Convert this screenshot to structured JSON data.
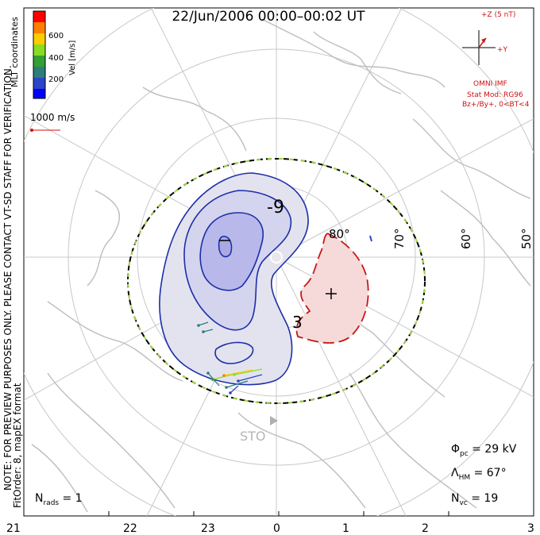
{
  "title": "22/Jun/2006 00:00–00:02 UT",
  "imf": {
    "axis_z": "+Z (5 nT)",
    "axis_y": "+Y",
    "source": "OMNI IMF",
    "stat_mod": "Stat Mod: RG96",
    "condition": "Bz+/By+, 0<BT<4"
  },
  "colorbar": {
    "title": "Vel [m/s]",
    "ticks": [
      "600",
      "400",
      "200"
    ],
    "colors": [
      "#ff0000",
      "#ff7f00",
      "#ffcc00",
      "#88dd22",
      "#33a033",
      "#2e7d7d",
      "#2a45c8",
      "#0000ff"
    ]
  },
  "coord_label": "MLT coordinates",
  "vector_scale": "1000 m/s",
  "side_note_1": "NOTE: FOR PREVIEW PURPOSES ONLY. PLEASE CONTACT VT-SD STAFF FOR VERIFICATION.",
  "side_note_2": "FitOrder: 8, mapEX format",
  "latitude_labels": [
    "80°",
    "70°",
    "60°",
    "50°"
  ],
  "radar_label": "STO",
  "contour_labels": [
    "-9",
    "3"
  ],
  "stats": {
    "phi_pc": "29 kV",
    "lambda_hm": "67°",
    "n_vc": "19",
    "n_rads": "1"
  },
  "mlt_ticks": [
    "21",
    "22",
    "23",
    "0",
    "1",
    "2",
    "3"
  ]
}
